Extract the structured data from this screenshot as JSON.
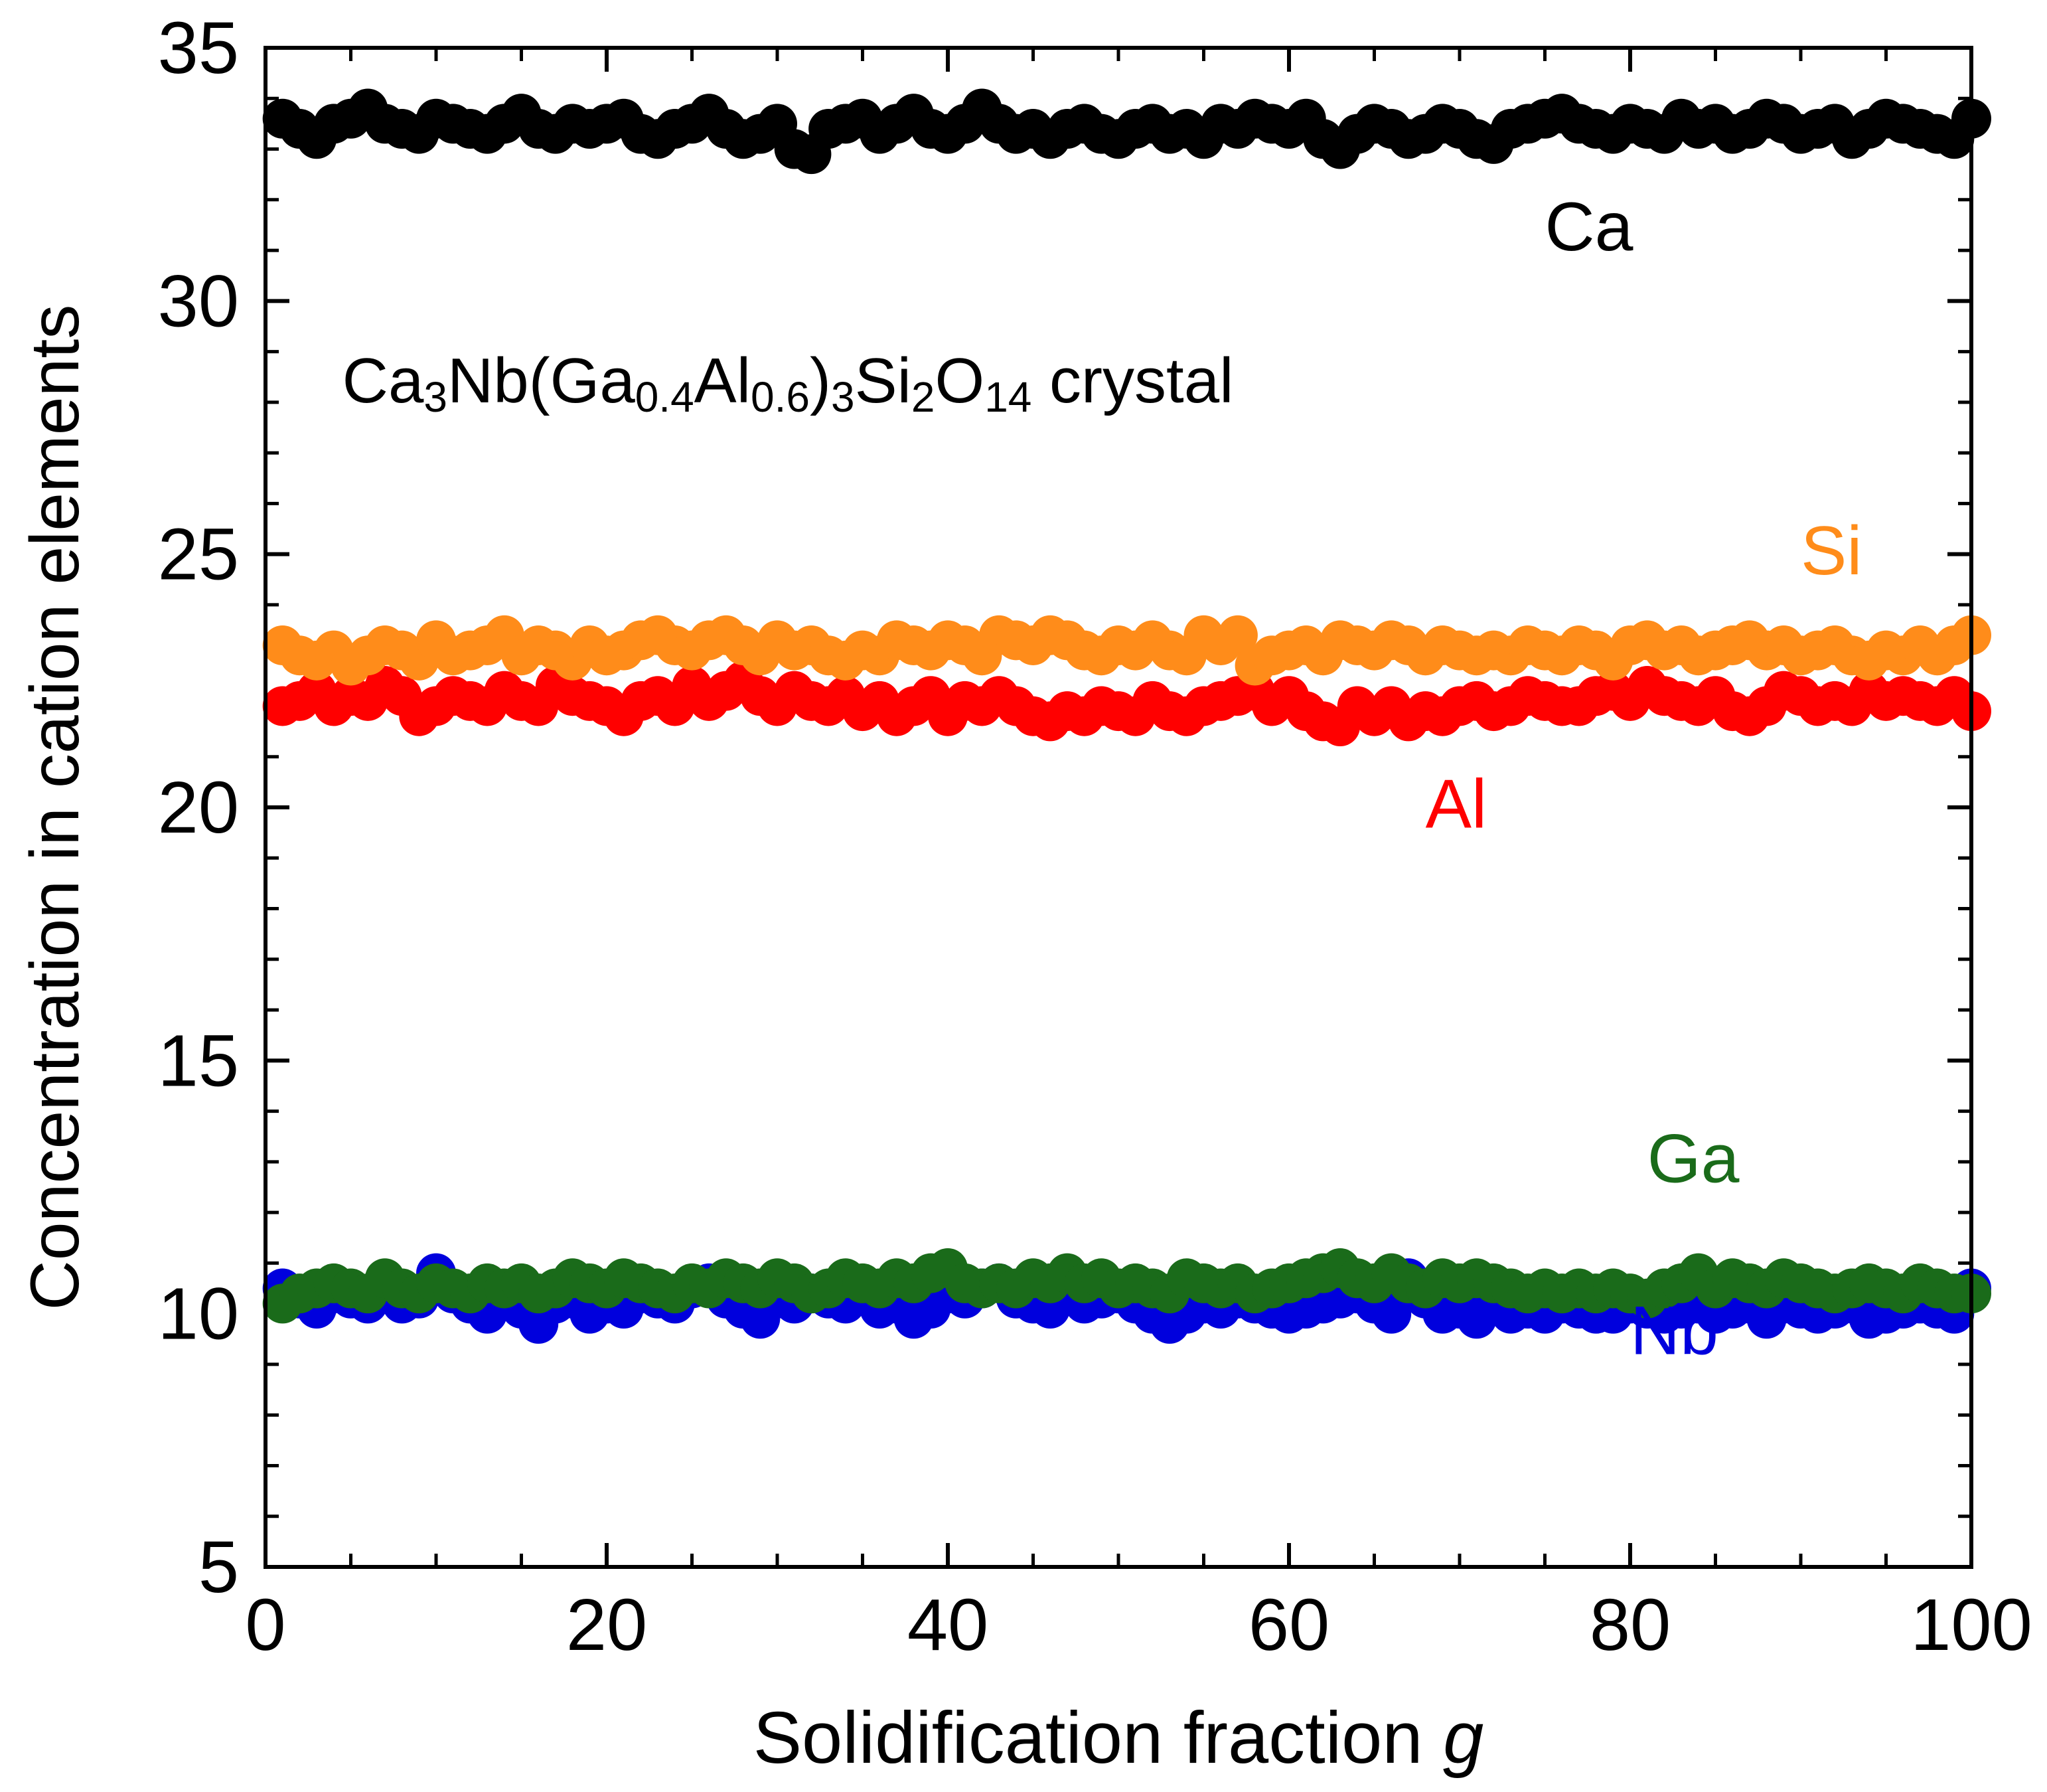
{
  "chart_data": {
    "type": "scatter",
    "title": "",
    "xlabel": "Solidification fraction ",
    "xlabel_italic": "g",
    "ylabel": "Concentration in cation elements",
    "xlim": [
      0,
      100
    ],
    "ylim": [
      5,
      35
    ],
    "x_ticks": [
      0,
      20,
      40,
      60,
      80,
      100
    ],
    "y_ticks": [
      5,
      10,
      15,
      20,
      25,
      30,
      35
    ],
    "x_minor_step": 5,
    "y_minor_step": 1,
    "grid": false,
    "annotation": {
      "parts": [
        {
          "t": "Ca",
          "sub": false
        },
        {
          "t": "3",
          "sub": true
        },
        {
          "t": "Nb(Ga",
          "sub": false
        },
        {
          "t": "0.4",
          "sub": true
        },
        {
          "t": "Al",
          "sub": false
        },
        {
          "t": "0.6",
          "sub": true
        },
        {
          "t": ")",
          "sub": false
        },
        {
          "t": "3",
          "sub": true
        },
        {
          "t": "Si",
          "sub": false
        },
        {
          "t": "2",
          "sub": true
        },
        {
          "t": "O",
          "sub": false
        },
        {
          "t": "14",
          "sub": true
        },
        {
          "t": " crystal",
          "sub": false
        }
      ]
    },
    "series": [
      {
        "name": "Ca",
        "color": "#000000",
        "label_pos": {
          "x": 75,
          "y": 31.0
        },
        "x": [
          1,
          2,
          3,
          4,
          5,
          6,
          7,
          8,
          9,
          10,
          11,
          12,
          13,
          14,
          15,
          16,
          17,
          18,
          19,
          20,
          21,
          22,
          23,
          24,
          25,
          26,
          27,
          28,
          29,
          30,
          31,
          32,
          33,
          34,
          35,
          36,
          37,
          38,
          39,
          40,
          41,
          42,
          43,
          44,
          45,
          46,
          47,
          48,
          49,
          50,
          51,
          52,
          53,
          54,
          55,
          56,
          57,
          58,
          59,
          60,
          61,
          62,
          63,
          64,
          65,
          66,
          67,
          68,
          69,
          70,
          71,
          72,
          73,
          74,
          75,
          76,
          77,
          78,
          79,
          80,
          81,
          82,
          83,
          84,
          85,
          86,
          87,
          88,
          89,
          90,
          91,
          92,
          93,
          94,
          95,
          96,
          97,
          98,
          99,
          100
        ],
        "values": [
          33.6,
          33.4,
          33.2,
          33.5,
          33.6,
          33.8,
          33.5,
          33.4,
          33.3,
          33.6,
          33.5,
          33.4,
          33.3,
          33.5,
          33.7,
          33.4,
          33.3,
          33.5,
          33.4,
          33.5,
          33.6,
          33.3,
          33.2,
          33.4,
          33.5,
          33.7,
          33.4,
          33.2,
          33.3,
          33.5,
          33.0,
          32.9,
          33.4,
          33.5,
          33.6,
          33.3,
          33.5,
          33.7,
          33.4,
          33.3,
          33.5,
          33.8,
          33.5,
          33.3,
          33.4,
          33.2,
          33.4,
          33.5,
          33.3,
          33.2,
          33.4,
          33.5,
          33.3,
          33.4,
          33.2,
          33.5,
          33.4,
          33.6,
          33.5,
          33.4,
          33.6,
          33.2,
          33.0,
          33.3,
          33.5,
          33.4,
          33.2,
          33.3,
          33.5,
          33.4,
          33.2,
          33.1,
          33.4,
          33.5,
          33.6,
          33.7,
          33.5,
          33.4,
          33.3,
          33.5,
          33.4,
          33.3,
          33.6,
          33.4,
          33.5,
          33.3,
          33.4,
          33.6,
          33.5,
          33.3,
          33.4,
          33.5,
          33.2,
          33.4,
          33.6,
          33.5,
          33.4,
          33.3,
          33.2,
          33.6
        ]
      },
      {
        "name": "Al",
        "color": "#ff0000",
        "label_pos": {
          "x": 68,
          "y": 19.6
        },
        "x": [
          1,
          2,
          3,
          4,
          5,
          6,
          7,
          8,
          9,
          10,
          11,
          12,
          13,
          14,
          15,
          16,
          17,
          18,
          19,
          20,
          21,
          22,
          23,
          24,
          25,
          26,
          27,
          28,
          29,
          30,
          31,
          32,
          33,
          34,
          35,
          36,
          37,
          38,
          39,
          40,
          41,
          42,
          43,
          44,
          45,
          46,
          47,
          48,
          49,
          50,
          51,
          52,
          53,
          54,
          55,
          56,
          57,
          58,
          59,
          60,
          61,
          62,
          63,
          64,
          65,
          66,
          67,
          68,
          69,
          70,
          71,
          72,
          73,
          74,
          75,
          76,
          77,
          78,
          79,
          80,
          81,
          82,
          83,
          84,
          85,
          86,
          87,
          88,
          89,
          90,
          91,
          92,
          93,
          94,
          95,
          96,
          97,
          98,
          99,
          100
        ],
        "values": [
          22.0,
          22.1,
          22.3,
          22.0,
          22.2,
          22.1,
          22.4,
          22.2,
          21.8,
          22.0,
          22.2,
          22.1,
          22.0,
          22.3,
          22.1,
          22.0,
          22.4,
          22.2,
          22.1,
          22.0,
          21.8,
          22.1,
          22.2,
          22.0,
          22.4,
          22.1,
          22.3,
          22.5,
          22.2,
          22.0,
          22.3,
          22.1,
          22.0,
          22.2,
          21.9,
          22.1,
          21.8,
          22.0,
          22.2,
          21.8,
          22.1,
          22.0,
          22.2,
          22.0,
          21.8,
          21.7,
          21.9,
          21.8,
          22.0,
          21.9,
          21.8,
          22.1,
          21.9,
          21.8,
          22.0,
          22.1,
          22.2,
          22.3,
          22.0,
          22.2,
          21.9,
          21.7,
          21.6,
          22.0,
          21.8,
          22.0,
          21.7,
          21.9,
          21.8,
          22.0,
          22.1,
          21.9,
          22.0,
          22.2,
          22.1,
          22.0,
          22.0,
          22.2,
          22.3,
          22.1,
          22.4,
          22.2,
          22.1,
          22.0,
          22.2,
          21.9,
          21.8,
          22.0,
          22.3,
          22.2,
          22.0,
          22.1,
          22.0,
          22.3,
          22.1,
          22.2,
          22.1,
          22.0,
          22.2,
          21.9
        ]
      },
      {
        "name": "Si",
        "color": "#ff8c1a",
        "label_pos": {
          "x": 90,
          "y": 24.6
        },
        "x": [
          1,
          2,
          3,
          4,
          5,
          6,
          7,
          8,
          9,
          10,
          11,
          12,
          13,
          14,
          15,
          16,
          17,
          18,
          19,
          20,
          21,
          22,
          23,
          24,
          25,
          26,
          27,
          28,
          29,
          30,
          31,
          32,
          33,
          34,
          35,
          36,
          37,
          38,
          39,
          40,
          41,
          42,
          43,
          44,
          45,
          46,
          47,
          48,
          49,
          50,
          51,
          52,
          53,
          54,
          55,
          56,
          57,
          58,
          59,
          60,
          61,
          62,
          63,
          64,
          65,
          66,
          67,
          68,
          69,
          70,
          71,
          72,
          73,
          74,
          75,
          76,
          77,
          78,
          79,
          80,
          81,
          82,
          83,
          84,
          85,
          86,
          87,
          88,
          89,
          90,
          91,
          92,
          93,
          94,
          95,
          96,
          97,
          98,
          99,
          100
        ],
        "values": [
          23.2,
          23.0,
          22.9,
          23.1,
          22.8,
          23.0,
          23.2,
          23.1,
          22.9,
          23.3,
          23.0,
          23.1,
          23.2,
          23.4,
          23.0,
          23.2,
          23.1,
          22.9,
          23.2,
          23.0,
          23.1,
          23.3,
          23.4,
          23.2,
          23.1,
          23.3,
          23.4,
          23.2,
          23.0,
          23.3,
          23.1,
          23.2,
          23.0,
          22.9,
          23.1,
          23.0,
          23.3,
          23.2,
          23.1,
          23.3,
          23.2,
          23.0,
          23.4,
          23.3,
          23.2,
          23.4,
          23.3,
          23.1,
          23.0,
          23.2,
          23.1,
          23.3,
          23.1,
          23.0,
          23.4,
          23.2,
          23.4,
          22.8,
          23.0,
          23.1,
          23.2,
          23.0,
          23.3,
          23.2,
          23.1,
          23.3,
          23.2,
          23.0,
          23.2,
          23.1,
          23.0,
          23.1,
          23.0,
          23.2,
          23.1,
          23.0,
          23.2,
          23.1,
          22.9,
          23.2,
          23.3,
          23.1,
          23.2,
          23.0,
          23.1,
          23.2,
          23.3,
          23.1,
          23.2,
          23.0,
          23.1,
          23.2,
          23.0,
          22.9,
          23.1,
          23.0,
          23.2,
          23.0,
          23.2,
          23.4
        ]
      },
      {
        "name": "Nb",
        "color": "#0000dd",
        "label_pos": {
          "x": 80,
          "y": 9.2
        },
        "x": [
          1,
          2,
          3,
          4,
          5,
          6,
          7,
          8,
          9,
          10,
          11,
          12,
          13,
          14,
          15,
          16,
          17,
          18,
          19,
          20,
          21,
          22,
          23,
          24,
          25,
          26,
          27,
          28,
          29,
          30,
          31,
          32,
          33,
          34,
          35,
          36,
          37,
          38,
          39,
          40,
          41,
          42,
          43,
          44,
          45,
          46,
          47,
          48,
          49,
          50,
          51,
          52,
          53,
          54,
          55,
          56,
          57,
          58,
          59,
          60,
          61,
          62,
          63,
          64,
          65,
          66,
          67,
          68,
          69,
          70,
          71,
          72,
          73,
          74,
          75,
          76,
          77,
          78,
          79,
          80,
          81,
          82,
          83,
          84,
          85,
          86,
          87,
          88,
          89,
          90,
          91,
          92,
          93,
          94,
          95,
          96,
          97,
          98,
          99,
          100
        ],
        "values": [
          10.5,
          10.3,
          10.1,
          10.4,
          10.3,
          10.2,
          10.4,
          10.2,
          10.3,
          10.8,
          10.4,
          10.2,
          10.0,
          10.3,
          10.1,
          9.8,
          10.2,
          10.3,
          10.0,
          10.2,
          10.1,
          10.4,
          10.3,
          10.2,
          10.5,
          10.6,
          10.3,
          10.1,
          9.9,
          10.3,
          10.2,
          10.4,
          10.3,
          10.2,
          10.5,
          10.1,
          10.2,
          9.9,
          10.1,
          10.4,
          10.3,
          10.5,
          10.6,
          10.3,
          10.2,
          10.1,
          10.4,
          10.2,
          10.3,
          10.4,
          10.2,
          10.0,
          9.8,
          10.0,
          10.2,
          10.1,
          10.3,
          10.2,
          10.1,
          10.0,
          10.1,
          10.2,
          10.3,
          10.4,
          10.2,
          10.0,
          10.7,
          10.3,
          10.0,
          10.1,
          9.9,
          10.2,
          10.0,
          10.1,
          10.0,
          10.2,
          10.1,
          10.0,
          10.0,
          10.2,
          10.1,
          10.0,
          10.1,
          10.2,
          10.0,
          10.1,
          10.2,
          9.9,
          10.2,
          10.1,
          10.0,
          10.1,
          10.2,
          9.9,
          10.0,
          10.1,
          10.2,
          10.1,
          10.0,
          10.5
        ]
      },
      {
        "name": "Ga",
        "color": "#1a6b1a",
        "label_pos": {
          "x": 81,
          "y": 12.6
        },
        "x": [
          1,
          2,
          3,
          4,
          5,
          6,
          7,
          8,
          9,
          10,
          11,
          12,
          13,
          14,
          15,
          16,
          17,
          18,
          19,
          20,
          21,
          22,
          23,
          24,
          25,
          26,
          27,
          28,
          29,
          30,
          31,
          32,
          33,
          34,
          35,
          36,
          37,
          38,
          39,
          40,
          41,
          42,
          43,
          44,
          45,
          46,
          47,
          48,
          49,
          50,
          51,
          52,
          53,
          54,
          55,
          56,
          57,
          58,
          59,
          60,
          61,
          62,
          63,
          64,
          65,
          66,
          67,
          68,
          69,
          70,
          71,
          72,
          73,
          74,
          75,
          76,
          77,
          78,
          79,
          80,
          81,
          82,
          83,
          84,
          85,
          86,
          87,
          88,
          89,
          90,
          91,
          92,
          93,
          94,
          95,
          96,
          97,
          98,
          99,
          100
        ],
        "values": [
          10.2,
          10.4,
          10.5,
          10.6,
          10.5,
          10.4,
          10.7,
          10.5,
          10.4,
          10.6,
          10.5,
          10.4,
          10.6,
          10.5,
          10.6,
          10.4,
          10.5,
          10.7,
          10.6,
          10.5,
          10.7,
          10.6,
          10.5,
          10.4,
          10.6,
          10.5,
          10.7,
          10.6,
          10.5,
          10.7,
          10.6,
          10.4,
          10.5,
          10.7,
          10.6,
          10.5,
          10.7,
          10.6,
          10.8,
          10.9,
          10.6,
          10.5,
          10.6,
          10.5,
          10.7,
          10.6,
          10.8,
          10.6,
          10.7,
          10.5,
          10.6,
          10.5,
          10.4,
          10.7,
          10.6,
          10.5,
          10.6,
          10.4,
          10.5,
          10.6,
          10.7,
          10.8,
          10.9,
          10.7,
          10.6,
          10.8,
          10.6,
          10.5,
          10.7,
          10.6,
          10.7,
          10.6,
          10.5,
          10.4,
          10.5,
          10.4,
          10.5,
          10.4,
          10.5,
          10.4,
          10.3,
          10.5,
          10.6,
          10.8,
          10.5,
          10.7,
          10.6,
          10.5,
          10.7,
          10.6,
          10.5,
          10.4,
          10.5,
          10.6,
          10.5,
          10.4,
          10.6,
          10.5,
          10.4,
          10.4
        ]
      }
    ]
  }
}
